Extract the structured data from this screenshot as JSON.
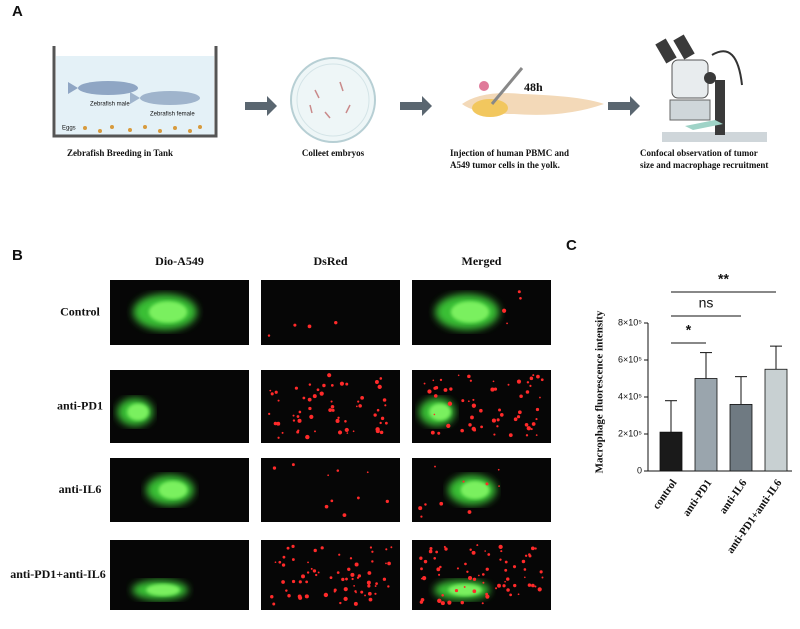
{
  "panel_a": {
    "label": "A",
    "tank_labels": {
      "male": "Zebrafish male",
      "female": "Zebrafish female",
      "eggs": "Eggs"
    },
    "time": "48h",
    "steps": [
      {
        "caption": [
          "Zebrafish Breeding in Tank"
        ]
      },
      {
        "caption": [
          "Colleet embryos"
        ]
      },
      {
        "caption": [
          "Injection of human PBMC and",
          "A549 tumor cells in the yolk."
        ]
      },
      {
        "caption": [
          "Confocal observation of tumor",
          "size and macrophage recruitment"
        ]
      }
    ]
  },
  "panel_b": {
    "label": "B",
    "columns": [
      "Dio-A549",
      "DsRed",
      "Merged"
    ],
    "rows": [
      "Control",
      "anti-PD1",
      "anti-IL6",
      "anti-PD1+anti-IL6"
    ]
  },
  "chart_data": {
    "type": "bar",
    "panel_label": "C",
    "y_label": "Macrophage  fluorescence intensity",
    "categories": [
      "control",
      "anti-PD1",
      "anti-IL6",
      "anti-PD1+anti-IL6"
    ],
    "values": [
      210000,
      500000,
      360000,
      550000
    ],
    "errors": [
      170000,
      140000,
      150000,
      125000
    ],
    "colors": [
      "#1a1a1a",
      "#9aa5ad",
      "#6f7a82",
      "#c8d0d2"
    ],
    "ylim": [
      0,
      800000
    ],
    "yticks": [
      0,
      {
        "value": 200000,
        "label": "2×10⁵"
      },
      {
        "value": 400000,
        "label": "4×10⁵"
      },
      {
        "value": 600000,
        "label": "6×10⁵"
      },
      {
        "value": 800000,
        "label": "8×10⁵"
      }
    ],
    "annotations": [
      "*",
      "ns",
      "**"
    ]
  }
}
